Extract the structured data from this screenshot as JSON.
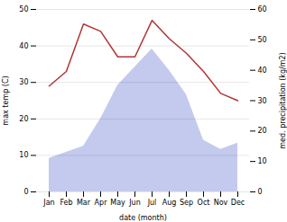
{
  "chart_data": {
    "type": "line",
    "categories": [
      "Jan",
      "Feb",
      "Mar",
      "Apr",
      "May",
      "Jun",
      "Jul",
      "Aug",
      "Sep",
      "Oct",
      "Nov",
      "Dec"
    ],
    "xlabel": "date (month)",
    "ylabel": "max temp (C)",
    "y2label": "med. precipitation (kg/m2)",
    "ylim": [
      0,
      50
    ],
    "yticks": [
      0,
      10,
      20,
      30,
      40,
      50
    ],
    "y2lim": [
      0,
      60
    ],
    "y2ticks": [
      0,
      10,
      20,
      30,
      40,
      50,
      60
    ],
    "grid": true,
    "series": [
      {
        "type": "area",
        "axis": "y2",
        "color": "#b0b8e8",
        "values": [
          11,
          13,
          15,
          24,
          35,
          41,
          47,
          40,
          32,
          17,
          14,
          16
        ]
      },
      {
        "type": "line",
        "axis": "y",
        "color": "#b03535",
        "values": [
          29,
          33,
          46,
          44,
          37,
          37,
          47,
          42,
          38,
          33,
          27,
          25
        ]
      }
    ]
  }
}
